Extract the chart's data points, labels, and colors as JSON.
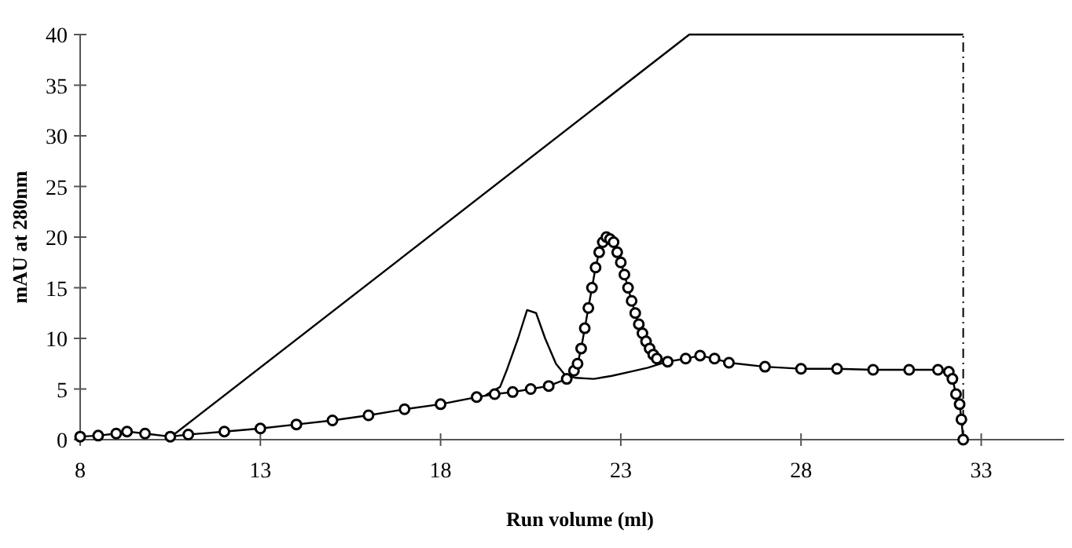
{
  "chart_data": {
    "type": "line",
    "xlabel": "Run volume (ml)",
    "ylabel": "mAU at 280nm",
    "xlim": [
      8,
      35.3
    ],
    "ylim": [
      0,
      40
    ],
    "xticks": [
      8,
      13,
      18,
      23,
      28,
      33
    ],
    "yticks": [
      0,
      5,
      10,
      15,
      20,
      25,
      30,
      35,
      40
    ],
    "grid": false,
    "ref_lines": [
      {
        "axis": "x",
        "value": 32.5,
        "color": "#000000",
        "line_style": "dashed"
      }
    ],
    "series": [
      {
        "color": "#000000",
        "marker": "none",
        "line_style": "solid",
        "x": [
          10.6,
          24.9,
          32.5
        ],
        "values": [
          0.5,
          40,
          40
        ]
      },
      {
        "color": "#000000",
        "marker": "none",
        "line_style": "solid",
        "x": [
          19.25,
          19.65,
          19.85,
          20.15,
          20.4,
          20.65,
          20.9,
          21.2,
          21.45,
          21.75,
          22.25,
          22.75,
          23.25,
          23.75,
          24.2
        ],
        "values": [
          4.4,
          5.2,
          7,
          10,
          12.8,
          12.5,
          10,
          7.5,
          6.4,
          6.1,
          6,
          6.3,
          6.7,
          7.1,
          7.6
        ]
      },
      {
        "color": "#000000",
        "marker": "circle",
        "line_style": "solid",
        "x": [
          8,
          8.5,
          9,
          9.3,
          9.8,
          10.5,
          11,
          12,
          13,
          14,
          15,
          16,
          17,
          18,
          19,
          19.5,
          20,
          20.5,
          21,
          21.5,
          21.7,
          21.8,
          21.9,
          22,
          22.1,
          22.2,
          22.3,
          22.4,
          22.5,
          22.6,
          22.7,
          22.8,
          22.9,
          23,
          23.1,
          23.2,
          23.3,
          23.4,
          23.5,
          23.6,
          23.7,
          23.8,
          23.9,
          24,
          24.3,
          24.8,
          25.2,
          25.6,
          26,
          27,
          28,
          29,
          30,
          31,
          31.8,
          32.1,
          32.2,
          32.3,
          32.4,
          32.45,
          32.5
        ],
        "values": [
          0.3,
          0.4,
          0.6,
          0.8,
          0.6,
          0.3,
          0.5,
          0.8,
          1.1,
          1.5,
          1.9,
          2.4,
          3,
          3.5,
          4.2,
          4.5,
          4.7,
          5,
          5.3,
          6,
          6.8,
          7.5,
          9,
          11,
          13,
          15,
          17,
          18.5,
          19.5,
          20,
          19.8,
          19.5,
          18.5,
          17.5,
          16.3,
          15,
          13.7,
          12.5,
          11.4,
          10.5,
          9.7,
          9,
          8.4,
          8,
          7.7,
          8,
          8.3,
          8,
          7.6,
          7.2,
          7,
          7,
          6.9,
          6.9,
          6.9,
          6.7,
          6,
          4.5,
          3.5,
          2,
          0
        ]
      }
    ]
  }
}
